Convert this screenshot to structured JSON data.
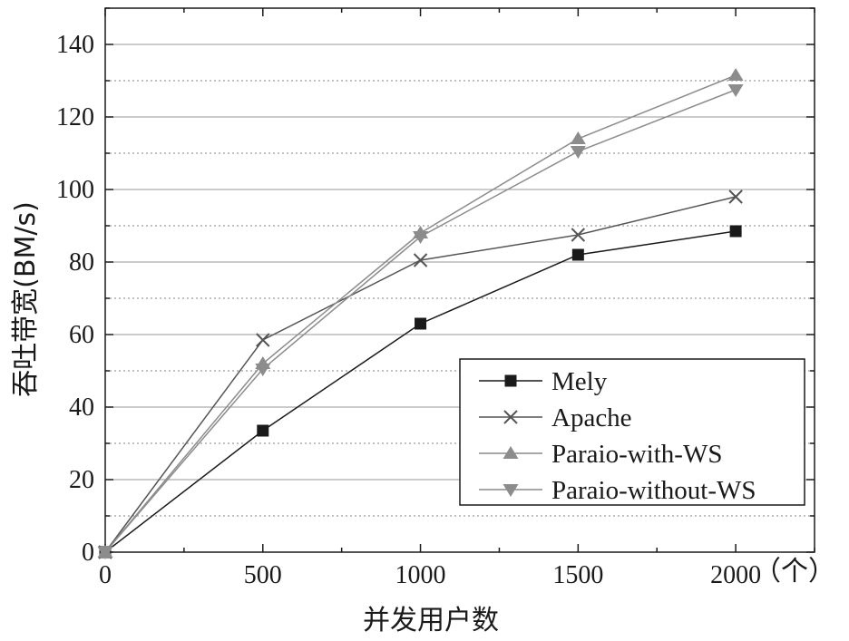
{
  "chart_data": {
    "type": "line",
    "xlabel": "并发用户数",
    "ylabel": "吞吐带宽(BM/s)",
    "x_unit": "（个）",
    "x": [
      0,
      500,
      1000,
      1500,
      2000
    ],
    "x_ticks": [
      "0",
      "500",
      "1000",
      "1500",
      "2000"
    ],
    "y_ticks": [
      "0",
      "20",
      "40",
      "60",
      "80",
      "100",
      "120",
      "140"
    ],
    "xlim": [
      0,
      2250
    ],
    "ylim": [
      0,
      150
    ],
    "grid": true,
    "legend_position": "bottom-right",
    "series": [
      {
        "name": "Mely",
        "marker": "square",
        "color": "#1a1a1a",
        "values": [
          0,
          33.5,
          63,
          82,
          88.5
        ]
      },
      {
        "name": "Apache",
        "marker": "x",
        "color": "#555555",
        "values": [
          0,
          58.5,
          80.5,
          87.5,
          98
        ]
      },
      {
        "name": "Paraio-with-WS",
        "marker": "triangle-up",
        "color": "#8c8c8c",
        "values": [
          0,
          52,
          88,
          114,
          131.5
        ]
      },
      {
        "name": "Paraio-without-WS",
        "marker": "triangle-down",
        "color": "#8c8c8c",
        "values": [
          0,
          50.5,
          87,
          110.5,
          127.5
        ]
      }
    ]
  }
}
